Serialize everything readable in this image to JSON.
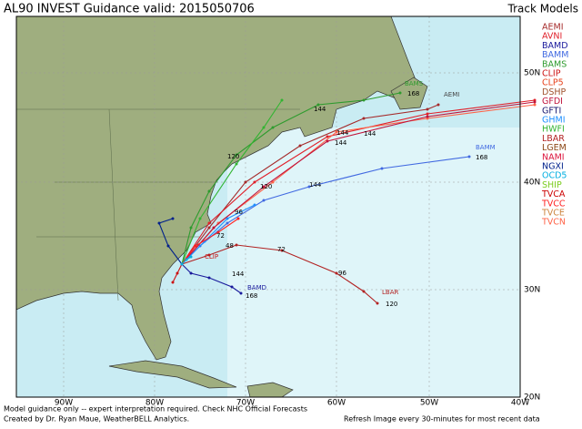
{
  "header": {
    "title": "AL90 INVEST Guidance valid: 2015050706",
    "legend_title": "Track Models"
  },
  "models": [
    {
      "name": "AEMI",
      "color": "#a52a2a"
    },
    {
      "name": "AVNI",
      "color": "#e0202a"
    },
    {
      "name": "BAMD",
      "color": "#1a1a9c"
    },
    {
      "name": "BAMM",
      "color": "#4169e1"
    },
    {
      "name": "BAMS",
      "color": "#2e9b2e"
    },
    {
      "name": "CLIP",
      "color": "#cc1010"
    },
    {
      "name": "CLP5",
      "color": "#e8401a"
    },
    {
      "name": "DSHP",
      "color": "#a0522d"
    },
    {
      "name": "GFDI",
      "color": "#c0143c"
    },
    {
      "name": "GFTI",
      "color": "#191970"
    },
    {
      "name": "GHMI",
      "color": "#1e90ff"
    },
    {
      "name": "HWFI",
      "color": "#32b432"
    },
    {
      "name": "LBAR",
      "color": "#b22222"
    },
    {
      "name": "LGEM",
      "color": "#8b4513"
    },
    {
      "name": "NAMI",
      "color": "#dc143c"
    },
    {
      "name": "NGXI",
      "color": "#00208b"
    },
    {
      "name": "OCD5",
      "color": "#00aee0"
    },
    {
      "name": "SHIP",
      "color": "#7ccd20"
    },
    {
      "name": "TVCA",
      "color": "#cc0000"
    },
    {
      "name": "TVCC",
      "color": "#ff2020"
    },
    {
      "name": "TVCE",
      "color": "#cd853f"
    },
    {
      "name": "TVCN",
      "color": "#ff6347"
    }
  ],
  "axes": {
    "lat_labels": [
      "50N",
      "40N",
      "30N",
      "20N"
    ],
    "lon_labels": [
      "90W",
      "80W",
      "70W",
      "60W",
      "50W",
      "40W"
    ]
  },
  "track_labels": [
    "AEMI",
    "BAMS",
    "BAMM",
    "BAMD",
    "LBAR",
    "CLIP",
    "168",
    "168",
    "168",
    "120",
    "96",
    "72",
    "48",
    "144",
    "144",
    "144",
    "144",
    "120",
    "120",
    "96",
    "72",
    "144",
    "144"
  ],
  "footer": {
    "disclaimer": "Model guidance only -- expert interpretation required.  Check NHC Official Forecasts",
    "credit": "Created by Dr. Ryan Maue, WeatherBELL Analytics.",
    "refresh": "Refresh Image every 30-minutes for most recent data"
  }
}
